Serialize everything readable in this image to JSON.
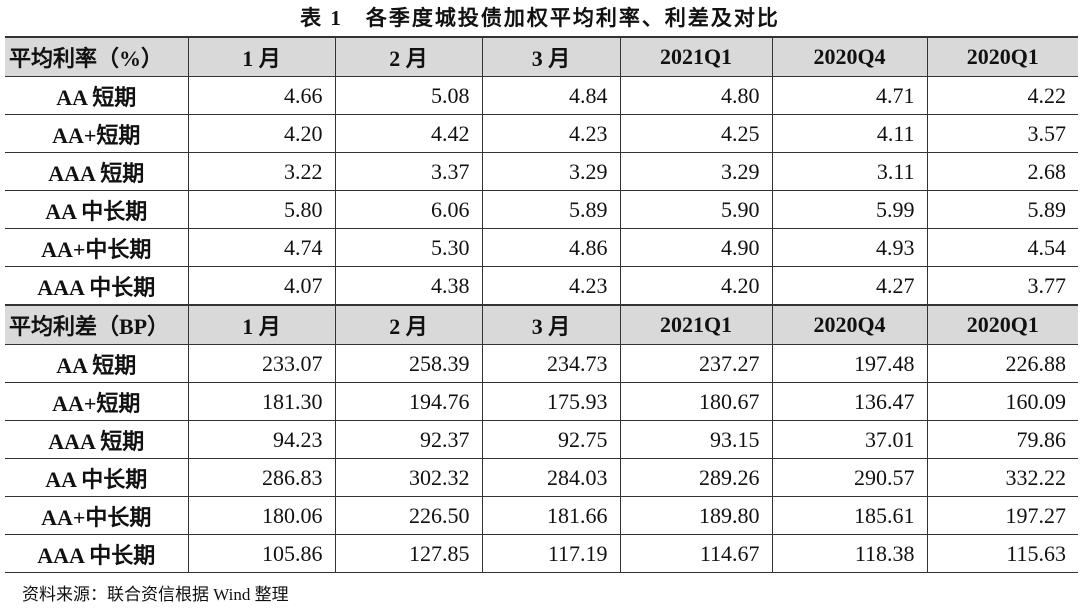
{
  "title": "表 1　各季度城投债加权平均利率、利差及对比",
  "sections": [
    {
      "header": [
        "平均利率（%）",
        "1 月",
        "2 月",
        "3 月",
        "2021Q1",
        "2020Q4",
        "2020Q1"
      ],
      "rows": [
        [
          "AA 短期",
          "4.66",
          "5.08",
          "4.84",
          "4.80",
          "4.71",
          "4.22"
        ],
        [
          "AA+短期",
          "4.20",
          "4.42",
          "4.23",
          "4.25",
          "4.11",
          "3.57"
        ],
        [
          "AAA 短期",
          "3.22",
          "3.37",
          "3.29",
          "3.29",
          "3.11",
          "2.68"
        ],
        [
          "AA 中长期",
          "5.80",
          "6.06",
          "5.89",
          "5.90",
          "5.99",
          "5.89"
        ],
        [
          "AA+中长期",
          "4.74",
          "5.30",
          "4.86",
          "4.90",
          "4.93",
          "4.54"
        ],
        [
          "AAA 中长期",
          "4.07",
          "4.38",
          "4.23",
          "4.20",
          "4.27",
          "3.77"
        ]
      ]
    },
    {
      "header": [
        "平均利差（BP）",
        "1 月",
        "2 月",
        "3 月",
        "2021Q1",
        "2020Q4",
        "2020Q1"
      ],
      "rows": [
        [
          "AA 短期",
          "233.07",
          "258.39",
          "234.73",
          "237.27",
          "197.48",
          "226.88"
        ],
        [
          "AA+短期",
          "181.30",
          "194.76",
          "175.93",
          "180.67",
          "136.47",
          "160.09"
        ],
        [
          "AAA 短期",
          "94.23",
          "92.37",
          "92.75",
          "93.15",
          "37.01",
          "79.86"
        ],
        [
          "AA 中长期",
          "286.83",
          "302.32",
          "284.03",
          "289.26",
          "290.57",
          "332.22"
        ],
        [
          "AA+中长期",
          "180.06",
          "226.50",
          "181.66",
          "189.80",
          "185.61",
          "197.27"
        ],
        [
          "AAA 中长期",
          "105.86",
          "127.85",
          "117.19",
          "114.67",
          "118.38",
          "115.63"
        ]
      ]
    }
  ],
  "footer": "资料来源：联合资信根据 Wind 整理"
}
